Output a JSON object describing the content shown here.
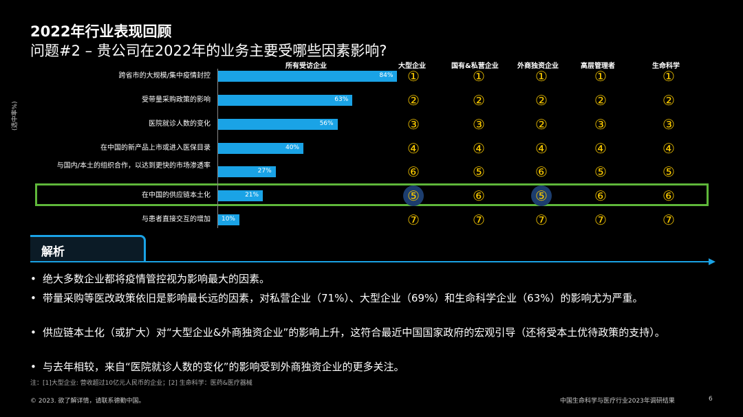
{
  "title": "2022年行业表现回顾",
  "subtitle": "问题#2 – 贵公司在2022年的业务主要受哪些因素影响?",
  "y_axis_label": "(选中率%)",
  "columns": [
    "所有受访企业",
    "大型企业",
    "国有&私营企业",
    "外商独资企业",
    "高层管理者",
    "生命科学"
  ],
  "chart_data": {
    "type": "bar",
    "title": "所有受访企业",
    "ylabel": "(选中率%)",
    "categories": [
      "跨省市的大规模/集中疫情封控",
      "受带量采购政策的影响",
      "医院就诊人数的变化",
      "在中国的新产品上市或进入医保目录",
      "与国内/本土的组织合作，以达到更快的市场渗透率",
      "在中国的供应链本土化",
      "与患者直接交互的增加"
    ],
    "values": [
      84,
      63,
      56,
      40,
      27,
      21,
      10
    ],
    "value_labels": [
      "84%",
      "63%",
      "56%",
      "40%",
      "27%",
      "21%",
      "10%"
    ],
    "xlim": [
      0,
      100
    ]
  },
  "ranks": [
    [
      "①",
      "①",
      "①",
      "①",
      "①"
    ],
    [
      "②",
      "②",
      "②",
      "②",
      "②"
    ],
    [
      "③",
      "③",
      "②",
      "③",
      "③"
    ],
    [
      "④",
      "④",
      "④",
      "④",
      "④"
    ],
    [
      "⑥",
      "⑤",
      "⑥",
      "⑤",
      "⑤"
    ],
    [
      "⑤",
      "⑥",
      "⑤",
      "⑥",
      "⑥"
    ],
    [
      "⑦",
      "⑦",
      "⑦",
      "⑦",
      "⑦"
    ]
  ],
  "highlighted_rank_cells": [
    [
      5,
      0
    ],
    [
      5,
      2
    ]
  ],
  "highlighted_row_index": 5,
  "colors": {
    "bar": "#1aa3e6",
    "rank": "#f7c700",
    "highlight_box": "#5fb73a",
    "accent": "#1aa3e6"
  },
  "analysis": {
    "title": "解析",
    "bullets": [
      "绝大多数企业都将疫情管控视为影响最大的因素。",
      "带量采购等医改政策依旧是影响最长远的因素，对私营企业（71%）、大型企业（69%）和生命科学企业（63%）的影响尤为严重。",
      "供应链本土化（或扩大）对“大型企业&外商独资企业”的影响上升，这符合最近中国国家政府的宏观引导（还将受本土优待政策的支持）。",
      "与去年相较，来自“医院就诊人数的变化”的影响受到外商独资企业的更多关注。"
    ]
  },
  "footnote": "注：[1]大型企业: 营收超过10亿元人民币的企业；[2] 生命科学：医药&医疗器械",
  "copyright": "© 2023. 欲了解详情，请联系德勤中国。",
  "source": "中国生命科学与医疗行业2023年调研结果",
  "page_number": "6"
}
